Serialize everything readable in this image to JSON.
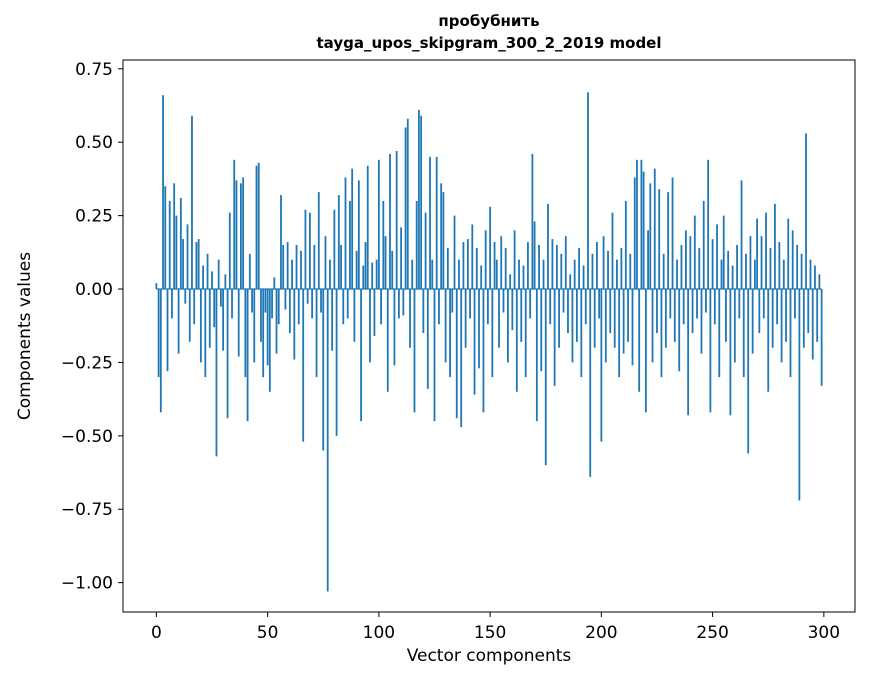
{
  "chart": {
    "title_line1": "пробубнить",
    "title_line2": "tayga_upos_skipgram_300_2_2019 model",
    "xlabel": "Vector components",
    "ylabel": "Components values"
  },
  "chart_data": {
    "type": "bar",
    "title": "пробубнить — tayga_upos_skipgram_300_2_2019 model",
    "xlabel": "Vector components",
    "ylabel": "Components values",
    "bar_color": "#1f77b4",
    "grid": false,
    "legend": false,
    "xlim": [
      -15,
      314
    ],
    "ylim": [
      -1.1,
      0.78
    ],
    "x_ticks": [
      0,
      50,
      100,
      150,
      200,
      250,
      300
    ],
    "y_ticks": [
      0.75,
      0.5,
      0.25,
      0.0,
      -0.25,
      -0.5,
      -0.75,
      -1.0
    ],
    "values": [
      0.02,
      -0.3,
      -0.42,
      0.66,
      0.35,
      -0.28,
      0.3,
      -0.1,
      0.36,
      0.25,
      -0.22,
      0.31,
      0.17,
      -0.05,
      0.22,
      -0.18,
      0.59,
      -0.12,
      0.16,
      0.17,
      -0.25,
      0.08,
      -0.3,
      0.12,
      -0.2,
      0.06,
      -0.13,
      -0.57,
      0.1,
      -0.06,
      -0.21,
      0.05,
      -0.44,
      0.26,
      -0.1,
      0.44,
      0.37,
      -0.23,
      0.36,
      0.38,
      -0.3,
      -0.45,
      0.12,
      -0.08,
      -0.25,
      0.42,
      0.43,
      -0.18,
      -0.3,
      -0.08,
      -0.26,
      -0.35,
      -0.1,
      0.04,
      -0.22,
      -0.12,
      0.32,
      0.15,
      -0.07,
      0.16,
      -0.15,
      0.1,
      -0.24,
      0.15,
      -0.12,
      0.13,
      -0.52,
      0.27,
      -0.05,
      0.26,
      -0.1,
      0.15,
      -0.3,
      0.33,
      -0.08,
      -0.55,
      0.18,
      -1.03,
      0.1,
      -0.21,
      0.27,
      -0.5,
      0.32,
      0.15,
      -0.12,
      0.38,
      -0.1,
      0.3,
      0.41,
      -0.18,
      0.13,
      0.37,
      -0.45,
      0.08,
      0.16,
      0.42,
      -0.25,
      0.09,
      -0.16,
      0.1,
      0.44,
      -0.12,
      0.3,
      0.18,
      -0.35,
      0.46,
      0.13,
      -0.26,
      0.47,
      -0.1,
      0.21,
      -0.09,
      0.55,
      0.58,
      -0.2,
      0.1,
      -0.42,
      0.3,
      0.61,
      0.59,
      -0.15,
      0.26,
      -0.34,
      0.45,
      0.1,
      -0.45,
      0.45,
      -0.12,
      0.36,
      0.33,
      -0.25,
      0.14,
      -0.3,
      -0.08,
      0.25,
      -0.44,
      0.1,
      -0.47,
      0.16,
      -0.2,
      0.17,
      -0.1,
      0.22,
      -0.36,
      0.14,
      -0.27,
      0.08,
      -0.42,
      0.2,
      -0.12,
      0.28,
      -0.3,
      0.16,
      0.1,
      -0.2,
      0.18,
      -0.08,
      0.14,
      -0.25,
      0.05,
      -0.14,
      0.2,
      -0.35,
      0.1,
      -0.18,
      0.08,
      -0.3,
      0.16,
      -0.1,
      0.46,
      0.23,
      -0.45,
      0.15,
      -0.28,
      0.1,
      -0.6,
      0.29,
      -0.12,
      0.17,
      -0.33,
      0.15,
      -0.2,
      0.12,
      -0.08,
      0.18,
      -0.15,
      0.05,
      -0.25,
      0.1,
      -0.18,
      0.14,
      -0.3,
      0.08,
      -0.12,
      0.67,
      -0.64,
      0.12,
      -0.2,
      0.16,
      -0.1,
      -0.52,
      0.18,
      -0.25,
      0.13,
      -0.15,
      0.26,
      -0.2,
      0.1,
      -0.3,
      0.14,
      -0.22,
      0.3,
      -0.18,
      0.12,
      -0.26,
      0.38,
      0.44,
      -0.35,
      0.44,
      0.4,
      -0.42,
      0.2,
      0.36,
      -0.25,
      0.41,
      -0.15,
      0.34,
      -0.3,
      0.12,
      -0.2,
      0.33,
      -0.1,
      0.38,
      -0.18,
      0.1,
      -0.28,
      0.15,
      -0.12,
      0.2,
      -0.43,
      0.18,
      -0.15,
      0.25,
      -0.1,
      0.14,
      -0.22,
      0.3,
      -0.08,
      0.44,
      -0.42,
      0.17,
      -0.12,
      0.22,
      -0.3,
      0.1,
      0.25,
      -0.18,
      0.13,
      -0.43,
      0.08,
      -0.25,
      0.15,
      -0.1,
      0.37,
      -0.3,
      0.12,
      -0.56,
      0.18,
      -0.22,
      0.1,
      0.24,
      -0.15,
      0.18,
      -0.1,
      0.26,
      -0.35,
      0.14,
      -0.2,
      0.29,
      -0.12,
      0.16,
      -0.25,
      0.1,
      -0.18,
      0.24,
      -0.3,
      0.2,
      -0.1,
      0.15,
      -0.72,
      0.12,
      -0.2,
      0.53,
      -0.15,
      0.1,
      -0.24,
      0.08,
      -0.18,
      0.05,
      -0.33
    ]
  }
}
